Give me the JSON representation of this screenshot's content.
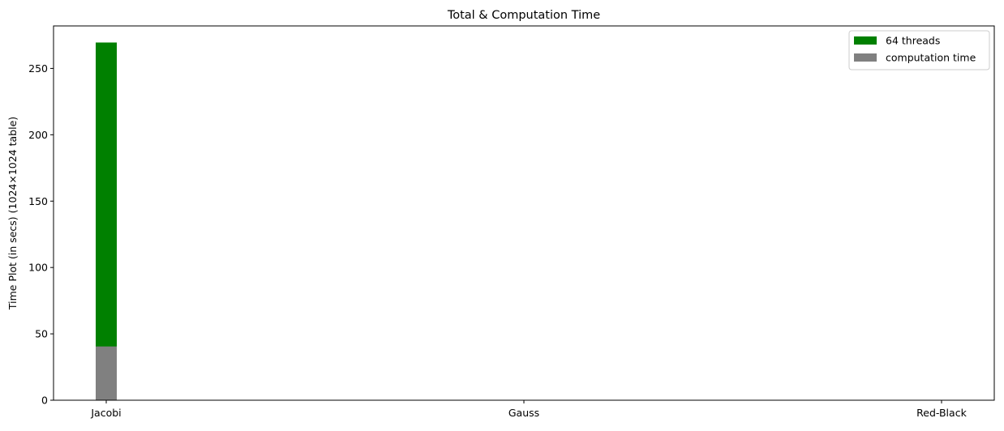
{
  "chart_data": {
    "type": "bar",
    "title": "Total & Computation Time",
    "xlabel": "",
    "ylabel": "Time Plot (in secs) (1024×1024 table)",
    "categories": [
      "Jacobi",
      "Gauss",
      "Red-Black"
    ],
    "series": [
      {
        "name": "64 threads",
        "values": [
          269.5,
          0,
          0
        ],
        "color": "#008000"
      },
      {
        "name": "computation time",
        "values": [
          40.5,
          0,
          0
        ],
        "color": "#808080"
      }
    ],
    "ylim": [
      0,
      282
    ],
    "yticks": [
      0,
      50,
      100,
      150,
      200,
      250
    ],
    "grid": false,
    "legend_position": "top-right"
  }
}
